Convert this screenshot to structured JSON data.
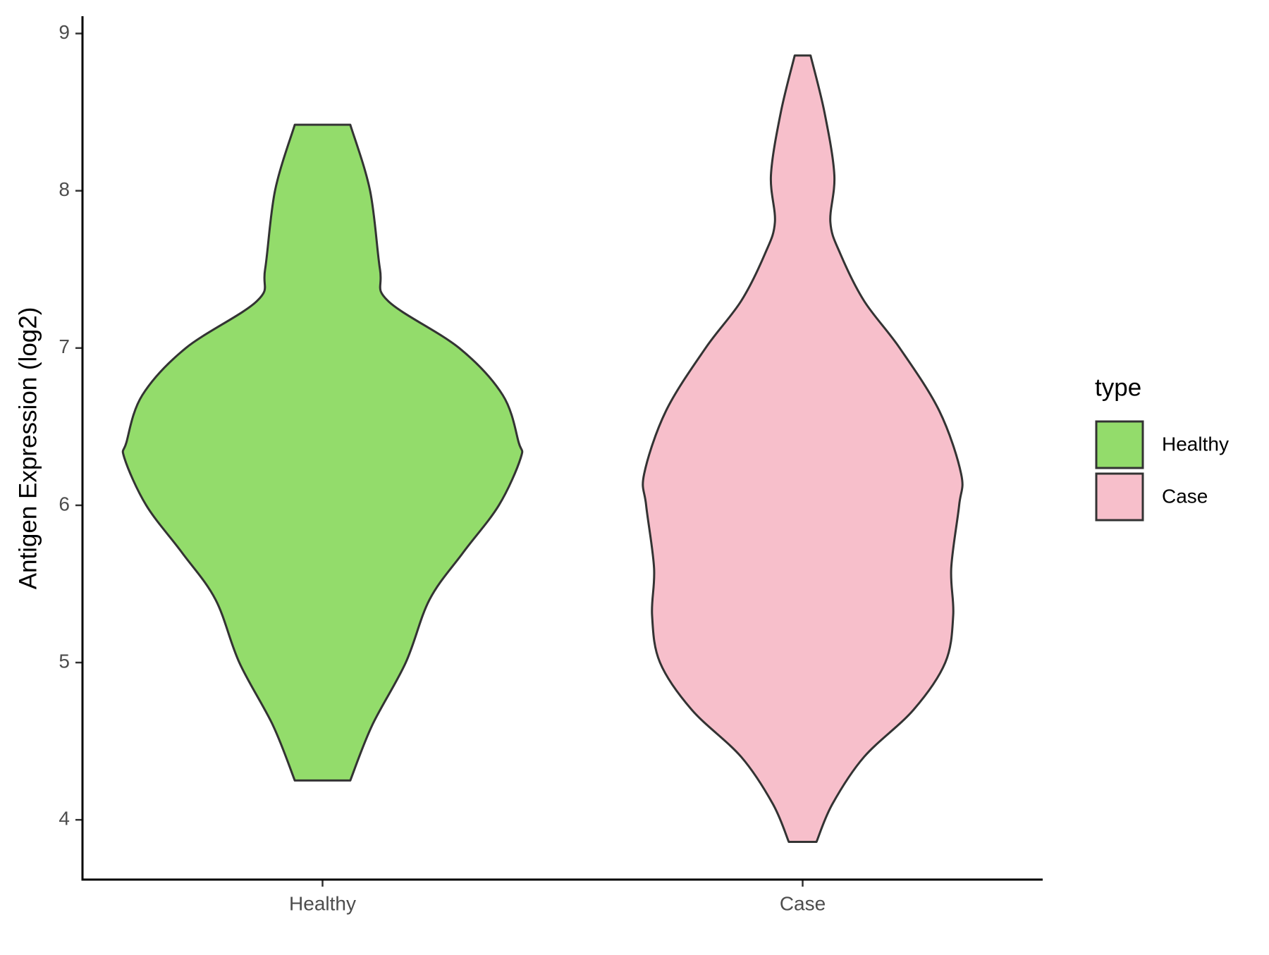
{
  "chart_data": {
    "type": "violin",
    "y_label": "Antigen Expression (log2)",
    "categories": [
      "Healthy",
      "Case"
    ],
    "legend_title": "type",
    "series": [
      {
        "name": "Healthy",
        "color": "#93dc6b",
        "y": [
          8.42,
          8.0,
          7.5,
          7.3,
          7.0,
          6.7,
          6.4,
          6.3,
          6.0,
          5.7,
          5.4,
          5.0,
          4.6,
          4.25
        ],
        "density": [
          0.14,
          0.24,
          0.29,
          0.33,
          0.69,
          0.91,
          0.99,
          1.0,
          0.89,
          0.71,
          0.54,
          0.42,
          0.25,
          0.14
        ]
      },
      {
        "name": "Case",
        "color": "#f7bfcb",
        "y": [
          8.86,
          8.5,
          8.1,
          7.8,
          7.6,
          7.3,
          7.0,
          6.6,
          6.2,
          6.0,
          5.6,
          5.3,
          5.0,
          4.7,
          4.4,
          4.1,
          3.86
        ],
        "density": [
          0.04,
          0.11,
          0.16,
          0.14,
          0.19,
          0.31,
          0.49,
          0.69,
          0.8,
          0.79,
          0.75,
          0.76,
          0.72,
          0.56,
          0.31,
          0.15,
          0.07
        ]
      }
    ],
    "ylim": [
      3.62,
      9.11
    ],
    "yticks": [
      4,
      5,
      6,
      7,
      8,
      9
    ],
    "legend": "right"
  }
}
